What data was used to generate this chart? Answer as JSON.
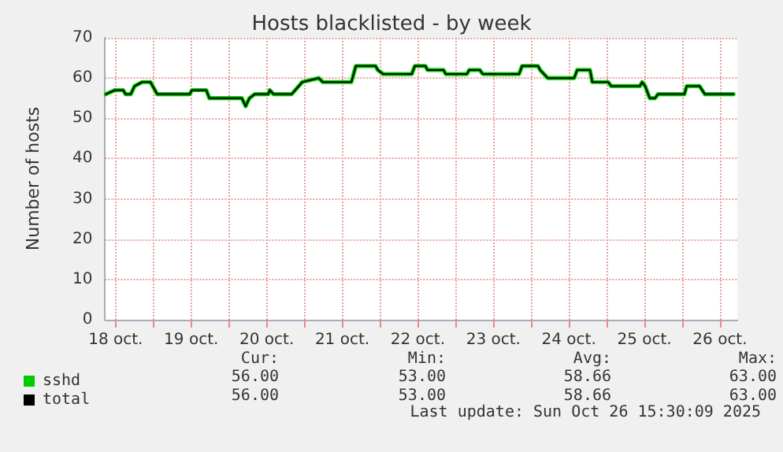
{
  "chart_data": {
    "type": "line",
    "title": "Hosts blacklisted - by week",
    "ylabel": "Number of hosts",
    "xlim": [
      "2025-10-18T08:38",
      "2025-10-26T17:31"
    ],
    "ylim": [
      0,
      70
    ],
    "xticks": [
      {
        "value": "2025-10-18T12:00",
        "label": "18 oct."
      },
      {
        "value": "2025-10-19",
        "label": null
      },
      {
        "value": "2025-10-19T12:00",
        "label": "19 oct."
      },
      {
        "value": "2025-10-20",
        "label": null
      },
      {
        "value": "2025-10-20T12:00",
        "label": "20 oct."
      },
      {
        "value": "2025-10-21",
        "label": null
      },
      {
        "value": "2025-10-21T12:00",
        "label": "21 oct."
      },
      {
        "value": "2025-10-22",
        "label": null
      },
      {
        "value": "2025-10-22T12:00",
        "label": "22 oct."
      },
      {
        "value": "2025-10-23",
        "label": null
      },
      {
        "value": "2025-10-23T12:00",
        "label": "23 oct."
      },
      {
        "value": "2025-10-24",
        "label": null
      },
      {
        "value": "2025-10-24T12:00",
        "label": "24 oct."
      },
      {
        "value": "2025-10-25",
        "label": null
      },
      {
        "value": "2025-10-25T12:00",
        "label": "25 oct."
      },
      {
        "value": "2025-10-26",
        "label": null
      },
      {
        "value": "2025-10-26T12:00",
        "label": "26 oct."
      }
    ],
    "yticks": [
      0,
      10,
      20,
      30,
      40,
      50,
      60,
      70
    ],
    "x": [
      "2025-10-18T08:53",
      "2025-10-18T11:46",
      "2025-10-18T14:24",
      "2025-10-18T15:07",
      "2025-10-18T16:48",
      "2025-10-18T18:00",
      "2025-10-18T20:24",
      "2025-10-18T23:02",
      "2025-10-19T01:12",
      "2025-10-19T11:31",
      "2025-10-19T12:14",
      "2025-10-19T16:48",
      "2025-10-19T17:46",
      "2025-10-20T04:05",
      "2025-10-20T05:17",
      "2025-10-20T06:29",
      "2025-10-20T08:10",
      "2025-10-20T12:29",
      "2025-10-20T12:58",
      "2025-10-20T14:10",
      "2025-10-20T19:55",
      "2025-10-20T23:17",
      "2025-10-21T04:34",
      "2025-10-21T05:46",
      "2025-10-21T14:53",
      "2025-10-21T16:19",
      "2025-10-21T22:34",
      "2025-10-21T23:17",
      "2025-10-22T00:58",
      "2025-10-22T10:05",
      "2025-10-22T11:02",
      "2025-10-22T14:24",
      "2025-10-22T15:07",
      "2025-10-22T20:10",
      "2025-10-22T20:53",
      "2025-10-23T03:36",
      "2025-10-23T04:19",
      "2025-10-23T07:41",
      "2025-10-23T08:38",
      "2025-10-23T20:10",
      "2025-10-23T21:07",
      "2025-10-24T02:10",
      "2025-10-24T02:53",
      "2025-10-24T05:17",
      "2025-10-24T13:41",
      "2025-10-24T14:38",
      "2025-10-24T18:43",
      "2025-10-24T19:26",
      "2025-10-25T00:29",
      "2025-10-25T01:26",
      "2025-10-25T10:34",
      "2025-10-25T11:17",
      "2025-10-25T12:14",
      "2025-10-25T13:41",
      "2025-10-25T15:22",
      "2025-10-25T16:19",
      "2025-10-26T00:43",
      "2025-10-26T01:26",
      "2025-10-26T05:31",
      "2025-10-26T07:12",
      "2025-10-26T16:19"
    ],
    "series": [
      {
        "name": "sshd",
        "color": "#00cc00",
        "values": [
          56,
          57,
          57,
          56,
          56,
          58,
          59,
          59,
          56,
          56,
          57,
          57,
          55,
          55,
          53,
          55,
          56,
          56,
          57,
          56,
          56,
          59,
          60,
          59,
          59,
          63,
          63,
          62,
          61,
          61,
          63,
          63,
          62,
          62,
          61,
          61,
          62,
          62,
          61,
          61,
          63,
          63,
          62,
          60,
          60,
          62,
          62,
          59,
          59,
          58,
          58,
          59,
          58,
          55,
          55,
          56,
          56,
          58,
          58,
          56,
          56
        ]
      },
      {
        "name": "total",
        "color": "#000000",
        "values": [
          56,
          57,
          57,
          56,
          56,
          58,
          59,
          59,
          56,
          56,
          57,
          57,
          55,
          55,
          53,
          55,
          56,
          56,
          57,
          56,
          56,
          59,
          60,
          59,
          59,
          63,
          63,
          62,
          61,
          61,
          63,
          63,
          62,
          62,
          61,
          61,
          62,
          62,
          61,
          61,
          63,
          63,
          62,
          60,
          60,
          62,
          62,
          59,
          59,
          58,
          58,
          59,
          58,
          55,
          55,
          56,
          56,
          58,
          58,
          56,
          56
        ]
      }
    ],
    "grid": true,
    "legend": "bottom left",
    "marker": "none",
    "line_style": "solid",
    "annotations": [
      "Cur:",
      "Min:",
      "Avg:",
      "Max:",
      "56.00",
      "53.00",
      "58.66",
      "63.00",
      "56.00",
      "53.00",
      "58.66",
      "63.00",
      "Last update: Sun Oct 26 15:30:09 2025"
    ]
  }
}
